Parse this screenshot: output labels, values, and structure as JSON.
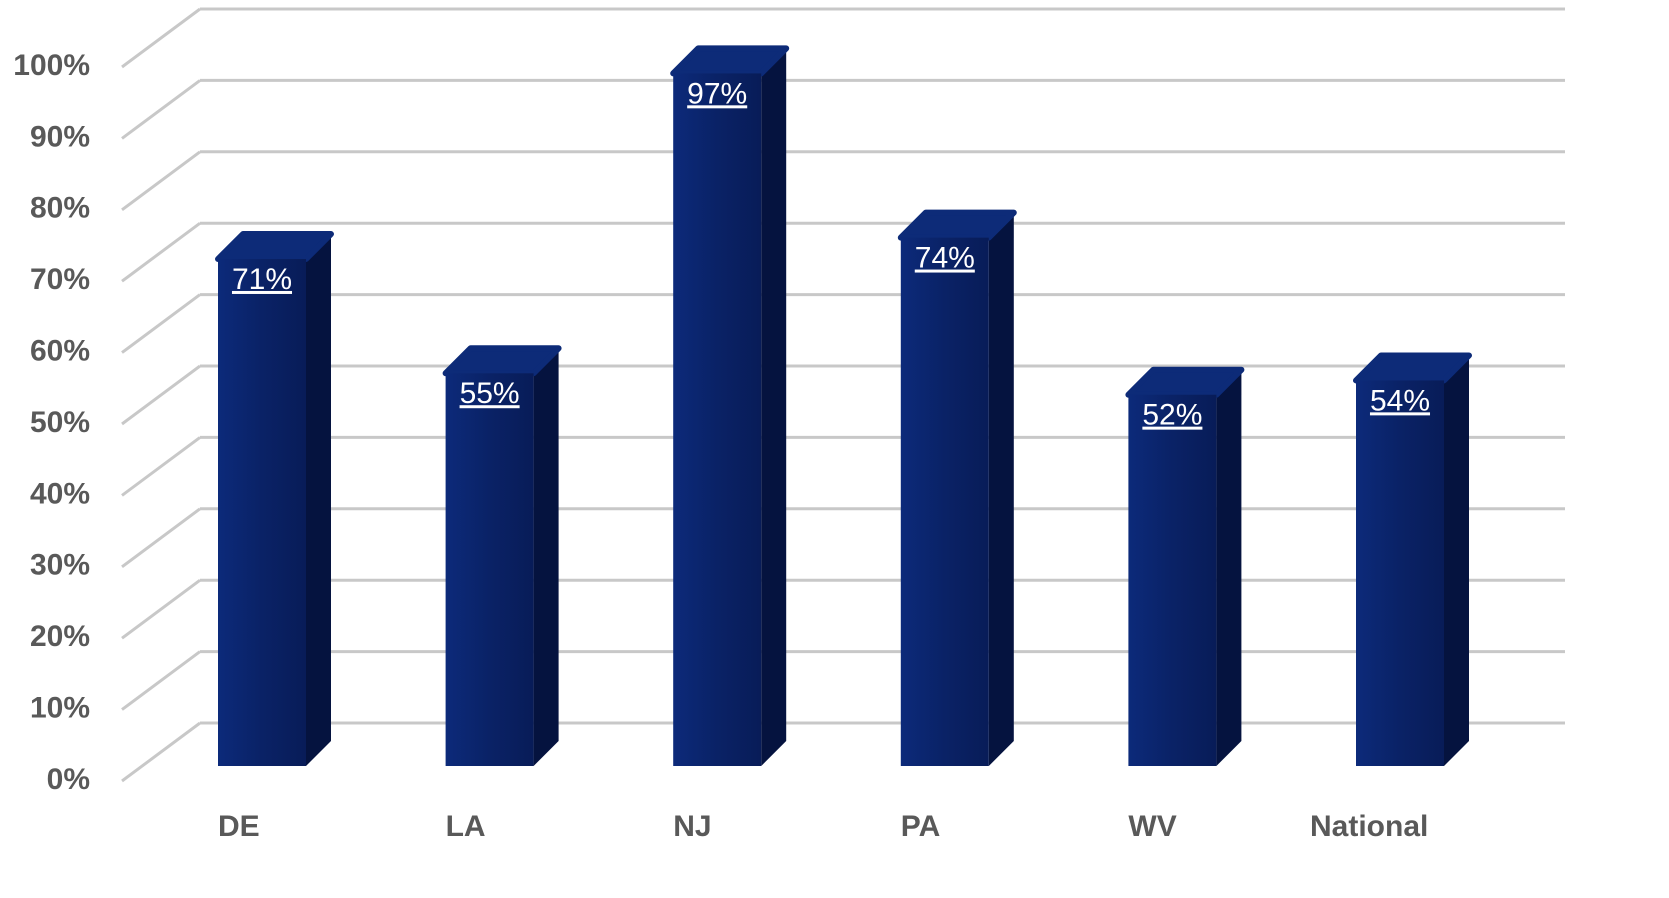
{
  "chart_data": {
    "type": "bar",
    "categories": [
      "DE",
      "LA",
      "NJ",
      "PA",
      "WV",
      "National"
    ],
    "values": [
      71,
      55,
      97,
      74,
      52,
      54
    ],
    "value_labels": [
      "71%",
      "55%",
      "97%",
      "74%",
      "52%",
      "54%"
    ],
    "color": "#0a2266",
    "ylim": [
      0,
      100
    ],
    "yticks": [
      {
        "value": 0,
        "label": "0%"
      },
      {
        "value": 10,
        "label": "10%"
      },
      {
        "value": 20,
        "label": "20%"
      },
      {
        "value": 30,
        "label": "30%"
      },
      {
        "value": 40,
        "label": "40%"
      },
      {
        "value": 50,
        "label": "50%"
      },
      {
        "value": 60,
        "label": "60%"
      },
      {
        "value": 70,
        "label": "70%"
      },
      {
        "value": 80,
        "label": "80%"
      },
      {
        "value": 90,
        "label": "90%"
      },
      {
        "value": 100,
        "label": "100%"
      }
    ],
    "grid": true
  }
}
